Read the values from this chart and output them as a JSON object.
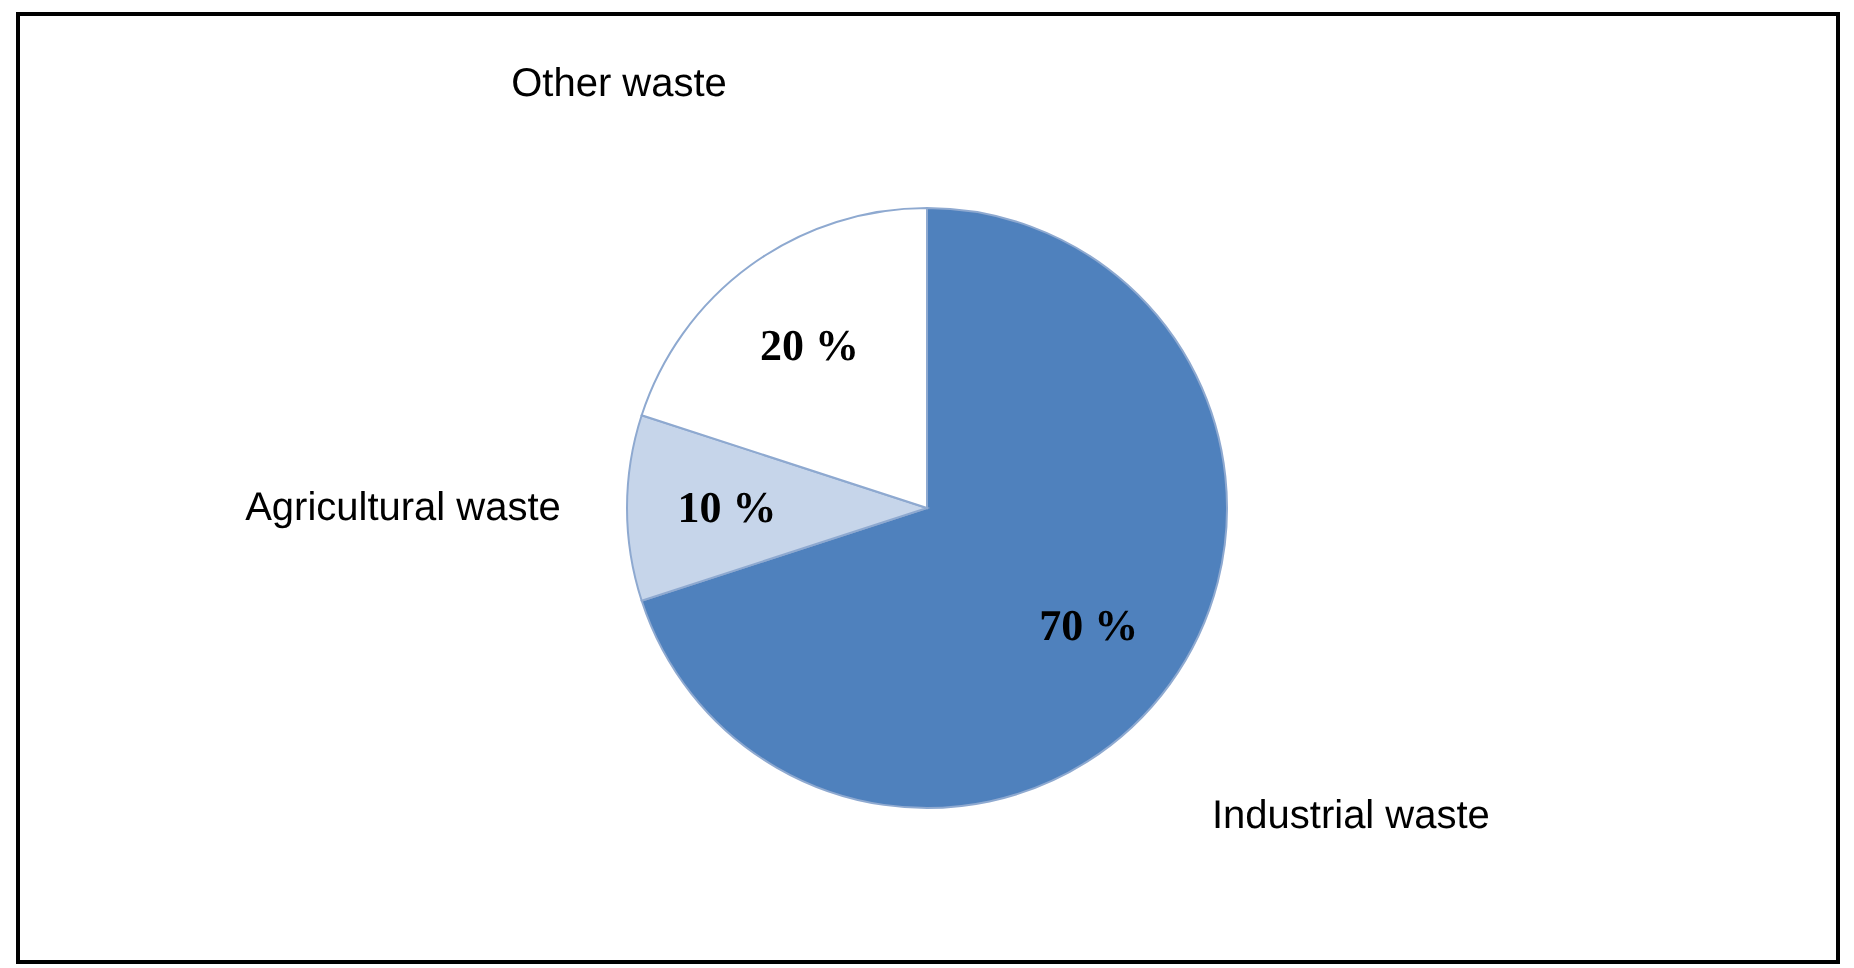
{
  "chart_data": {
    "type": "pie",
    "categories": [
      "Industrial waste",
      "Agricultural waste",
      "Other waste"
    ],
    "values": [
      70,
      10,
      20
    ],
    "colors": [
      "#4f81bd",
      "#c6d5ea",
      "#ffffff"
    ],
    "value_labels": [
      "70 %",
      "10 %",
      "20 %"
    ],
    "legend": false
  }
}
